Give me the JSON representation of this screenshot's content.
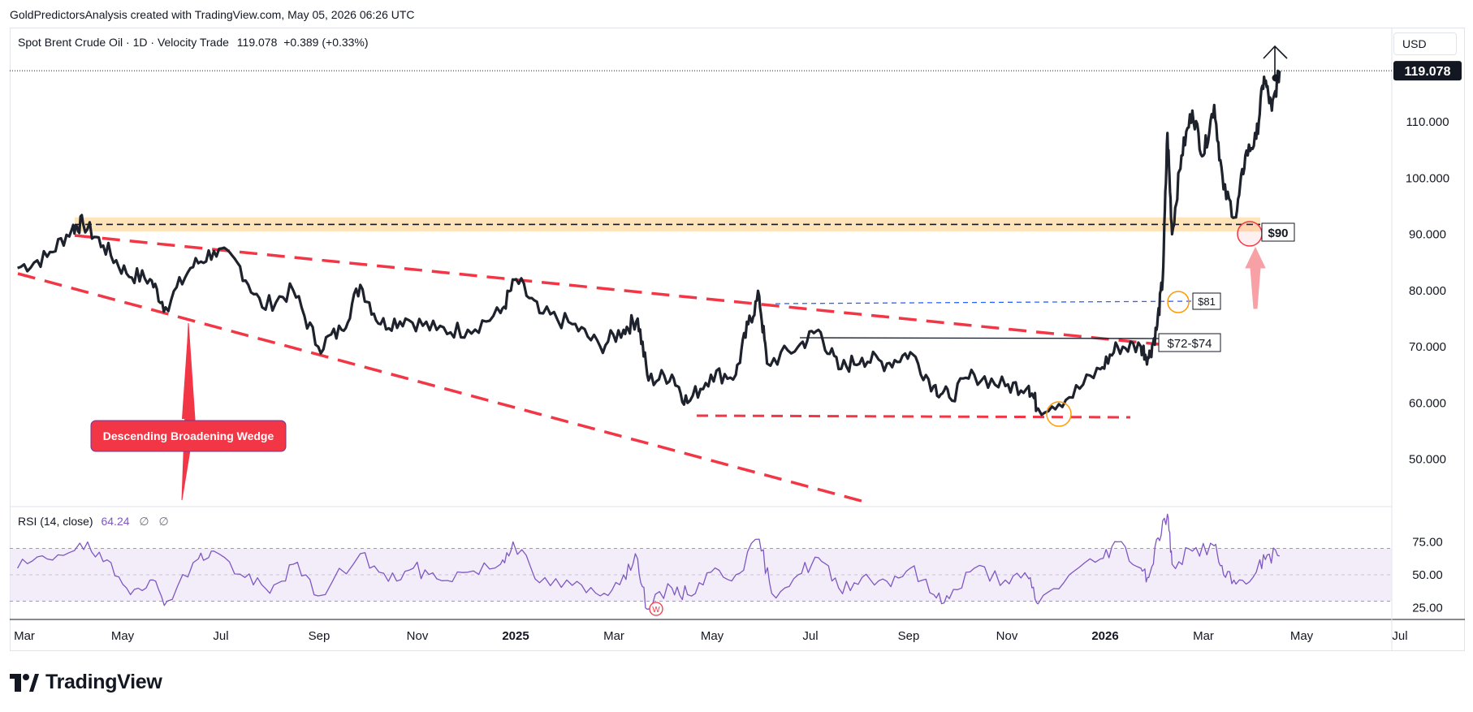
{
  "attribution": "GoldPredictorsAnalysis created with TradingView.com, May 05, 2026 06:26 UTC",
  "legend": {
    "symbol": "Spot Brent Crude Oil · 1D · Velocity Trade",
    "price": "119.078",
    "change": "+0.389 (+0.33%)"
  },
  "currency_button": "USD",
  "rsi_legend": {
    "label": "RSI (14, close)",
    "value": "64.24",
    "placeholder_1": "∅",
    "placeholder_2": "∅"
  },
  "footer_logo": "TradingView",
  "colors": {
    "price_line": "#1e222d",
    "wedge": "#f23645",
    "resistance_zone": "#ffcc80",
    "rsi_line": "#7e57c2",
    "rsi_band": "#ede7f6",
    "blue_dashed": "#2962ff",
    "circle_orange": "#ff9800",
    "circle_red": "#f23645"
  },
  "chart_data": [
    {
      "type": "line",
      "title": "Spot Brent Crude Oil · 1D · Velocity Trade",
      "price_axis": {
        "ticks": [
          50,
          60,
          70,
          80,
          90,
          100,
          110
        ],
        "tick_labels": [
          "50.000",
          "60.000",
          "70.000",
          "80.000",
          "90.000",
          "100.000",
          "110.000"
        ],
        "current_price_label": "119.078",
        "ylim": [
          43,
          123
        ]
      },
      "time_axis": {
        "labels": [
          "Mar",
          "May",
          "Jul",
          "Sep",
          "Nov",
          "2025",
          "Mar",
          "May",
          "Jul",
          "Sep",
          "Nov",
          "2026",
          "Mar",
          "May",
          "Jul"
        ],
        "xlim": [
          "2024-02-25",
          "2026-07-31"
        ]
      },
      "series": [
        {
          "points": [
            [
              "2024-03-01",
              84
            ],
            [
              "2024-03-20",
              86
            ],
            [
              "2024-04-05",
              91
            ],
            [
              "2024-04-12",
              92
            ],
            [
              "2024-04-25",
              88
            ],
            [
              "2024-05-10",
              83
            ],
            [
              "2024-05-25",
              82
            ],
            [
              "2024-06-04",
              77
            ],
            [
              "2024-06-20",
              84
            ],
            [
              "2024-07-05",
              87
            ],
            [
              "2024-07-20",
              85
            ],
            [
              "2024-08-05",
              77
            ],
            [
              "2024-08-25",
              80
            ],
            [
              "2024-09-10",
              70
            ],
            [
              "2024-09-25",
              73
            ],
            [
              "2024-10-07",
              81
            ],
            [
              "2024-10-20",
              74
            ],
            [
              "2024-11-05",
              75
            ],
            [
              "2024-11-25",
              73
            ],
            [
              "2024-12-15",
              73
            ],
            [
              "2025-01-05",
              76
            ],
            [
              "2025-01-15",
              82
            ],
            [
              "2025-01-30",
              76
            ],
            [
              "2025-02-20",
              74
            ],
            [
              "2025-03-10",
              70
            ],
            [
              "2025-03-25",
              73
            ],
            [
              "2025-04-03",
              75
            ],
            [
              "2025-04-10",
              64
            ],
            [
              "2025-04-25",
              65
            ],
            [
              "2025-05-05",
              60
            ],
            [
              "2025-05-20",
              65
            ],
            [
              "2025-06-05",
              65
            ],
            [
              "2025-06-13",
              74
            ],
            [
              "2025-06-20",
              79
            ],
            [
              "2025-06-25",
              67
            ],
            [
              "2025-07-15",
              70
            ],
            [
              "2025-07-28",
              73
            ],
            [
              "2025-08-10",
              66
            ],
            [
              "2025-08-25",
              68
            ],
            [
              "2025-09-10",
              67
            ],
            [
              "2025-09-25",
              69
            ],
            [
              "2025-10-10",
              63
            ],
            [
              "2025-10-20",
              61
            ],
            [
              "2025-11-05",
              65
            ],
            [
              "2025-11-25",
              63
            ],
            [
              "2025-12-10",
              63
            ],
            [
              "2025-12-16",
              59
            ],
            [
              "2026-01-05",
              61
            ],
            [
              "2026-01-25",
              66
            ],
            [
              "2026-02-05",
              70
            ],
            [
              "2026-02-20",
              70
            ],
            [
              "2026-02-25",
              68
            ],
            [
              "2026-03-02",
              73
            ],
            [
              "2026-03-06",
              82
            ],
            [
              "2026-03-09",
              108
            ],
            [
              "2026-03-12",
              90
            ],
            [
              "2026-03-18",
              104
            ],
            [
              "2026-03-25",
              112
            ],
            [
              "2026-04-01",
              104
            ],
            [
              "2026-04-08",
              113
            ],
            [
              "2026-04-14",
              98
            ],
            [
              "2026-04-22",
              93
            ],
            [
              "2026-04-28",
              104
            ],
            [
              "2026-05-05",
              107
            ],
            [
              "2026-05-10",
              118
            ],
            [
              "2026-05-15",
              112
            ],
            [
              "2026-05-20",
              119.078
            ]
          ]
        }
      ],
      "annotations": {
        "wedge_label": "Descending Broadening Wedge",
        "level_90": "$90",
        "level_81": "$81",
        "level_72_74": "$72-$74",
        "resistance_zone": [
          90.5,
          93
        ]
      },
      "grid": false
    },
    {
      "type": "line",
      "title": "RSI (14, close)",
      "price_axis": {
        "ticks": [
          25,
          50,
          75
        ],
        "tick_labels": [
          "25.00",
          "50.00",
          "75.00"
        ],
        "ylim": [
          18,
          98
        ],
        "band": [
          30,
          70
        ]
      },
      "series": [
        {
          "points": [
            [
              "2024-03-01",
              55
            ],
            [
              "2024-03-20",
              62
            ],
            [
              "2024-04-10",
              74
            ],
            [
              "2024-04-25",
              60
            ],
            [
              "2024-05-10",
              40
            ],
            [
              "2024-05-25",
              46
            ],
            [
              "2024-06-05",
              30
            ],
            [
              "2024-06-25",
              62
            ],
            [
              "2024-07-05",
              68
            ],
            [
              "2024-07-25",
              48
            ],
            [
              "2024-08-10",
              36
            ],
            [
              "2024-08-25",
              58
            ],
            [
              "2024-09-10",
              34
            ],
            [
              "2024-10-07",
              66
            ],
            [
              "2024-10-25",
              45
            ],
            [
              "2024-11-10",
              55
            ],
            [
              "2024-11-25",
              47
            ],
            [
              "2024-12-15",
              52
            ],
            [
              "2025-01-05",
              58
            ],
            [
              "2025-01-13",
              75
            ],
            [
              "2025-01-30",
              44
            ],
            [
              "2025-02-20",
              42
            ],
            [
              "2025-03-10",
              34
            ],
            [
              "2025-03-25",
              50
            ],
            [
              "2025-04-03",
              62
            ],
            [
              "2025-04-09",
              24
            ],
            [
              "2025-04-25",
              40
            ],
            [
              "2025-05-05",
              35
            ],
            [
              "2025-05-20",
              52
            ],
            [
              "2025-06-05",
              50
            ],
            [
              "2025-06-20",
              77
            ],
            [
              "2025-06-28",
              36
            ],
            [
              "2025-07-15",
              50
            ],
            [
              "2025-07-28",
              63
            ],
            [
              "2025-08-10",
              40
            ],
            [
              "2025-08-25",
              48
            ],
            [
              "2025-09-10",
              45
            ],
            [
              "2025-09-25",
              55
            ],
            [
              "2025-10-10",
              35
            ],
            [
              "2025-10-20",
              32
            ],
            [
              "2025-11-05",
              55
            ],
            [
              "2025-11-25",
              46
            ],
            [
              "2025-12-10",
              47
            ],
            [
              "2025-12-16",
              28
            ],
            [
              "2026-01-05",
              50
            ],
            [
              "2026-01-25",
              62
            ],
            [
              "2026-02-05",
              75
            ],
            [
              "2026-02-20",
              55
            ],
            [
              "2026-02-25",
              48
            ],
            [
              "2026-03-03",
              78
            ],
            [
              "2026-03-09",
              96
            ],
            [
              "2026-03-12",
              58
            ],
            [
              "2026-03-25",
              68
            ],
            [
              "2026-04-08",
              72
            ],
            [
              "2026-04-14",
              50
            ],
            [
              "2026-04-22",
              43
            ],
            [
              "2026-05-05",
              52
            ],
            [
              "2026-05-12",
              65
            ],
            [
              "2026-05-20",
              64.24
            ]
          ]
        }
      ],
      "grid": false
    }
  ]
}
